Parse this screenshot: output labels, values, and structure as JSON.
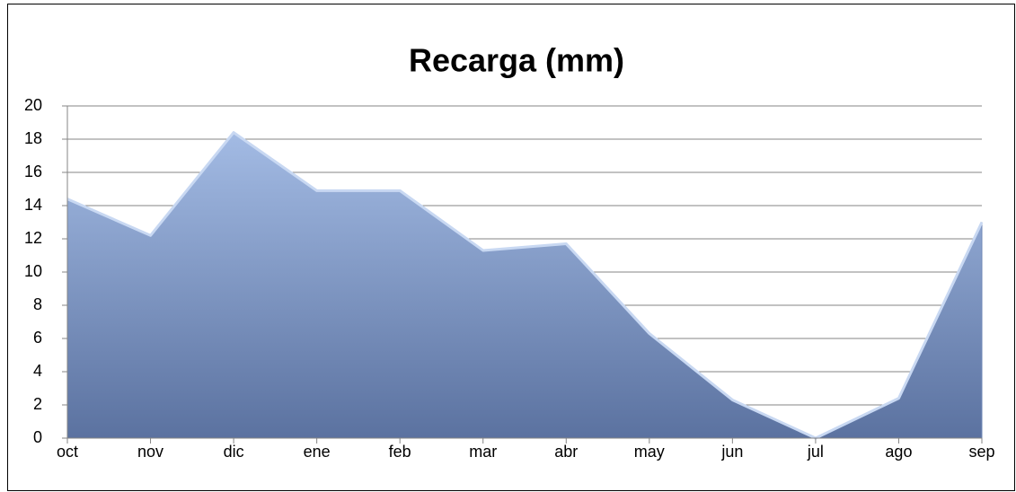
{
  "chart_data": {
    "type": "area",
    "title": "Recarga  (mm)",
    "categories": [
      "oct",
      "nov",
      "dic",
      "ene",
      "feb",
      "mar",
      "abr",
      "may",
      "jun",
      "jul",
      "ago",
      "sep"
    ],
    "values": [
      14.4,
      12.2,
      18.4,
      14.9,
      14.9,
      11.3,
      11.7,
      6.3,
      2.3,
      0,
      2.4,
      13.0
    ],
    "color": "#8099c8",
    "ylim": [
      0,
      20
    ],
    "yticks": [
      0,
      2,
      4,
      6,
      8,
      10,
      12,
      14,
      16,
      18,
      20
    ],
    "grid": true
  }
}
